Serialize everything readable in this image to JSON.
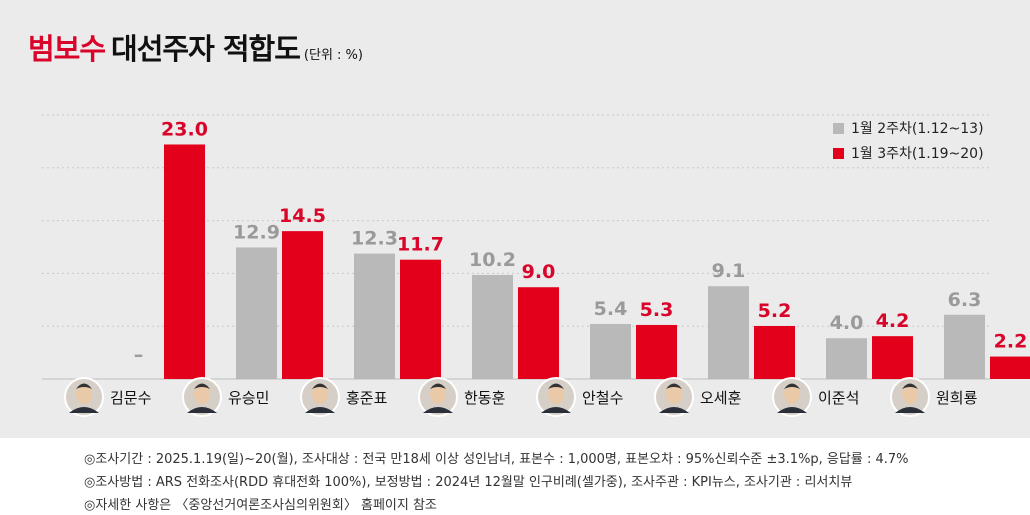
{
  "title": {
    "highlight": "범보수",
    "main": "대선주자 적합도",
    "unit": "(단위 : %)"
  },
  "chart_data": {
    "type": "bar",
    "categories": [
      "김문수",
      "유승민",
      "홍준표",
      "한동훈",
      "안철수",
      "오세훈",
      "이준석",
      "원희룡"
    ],
    "series": [
      {
        "name": "1월 2주차(1.12~13)",
        "color": "#b9b9b9",
        "values": [
          null,
          12.9,
          12.3,
          10.2,
          5.4,
          9.1,
          4.0,
          6.3
        ],
        "labels": [
          "–",
          "12.9",
          "12.3",
          "10.2",
          "5.4",
          "9.1",
          "4.0",
          "6.3"
        ]
      },
      {
        "name": "1월 3주차(1.19~20)",
        "color": "#e2001a",
        "values": [
          23.0,
          14.5,
          11.7,
          9.0,
          5.3,
          5.2,
          4.2,
          2.2
        ],
        "labels": [
          "23.0",
          "14.5",
          "11.7",
          "9.0",
          "5.3",
          "5.2",
          "4.2",
          "2.2"
        ]
      }
    ],
    "ylim": [
      0,
      25
    ],
    "grid": true,
    "legend_position": "top-right"
  },
  "footer": {
    "notes": [
      "◎조사기간 : 2025.1.19(일)~20(월), 조사대상 : 전국 만18세 이상 성인남녀, 표본수 : 1,000명, 표본오차 : 95%신뢰수준 ±3.1%p, 응답률 : 4.7%",
      "◎조사방법 : ARS 전화조사(RDD 휴대전화 100%), 보정방법 : 2024년 12월말 인구비례(셀가중), 조사주관 : KPI뉴스, 조사기관 : 리서치뷰",
      "◎자세한 사항은 〈중앙선거여론조사심의위원회〉 홈페이지 참조"
    ]
  }
}
